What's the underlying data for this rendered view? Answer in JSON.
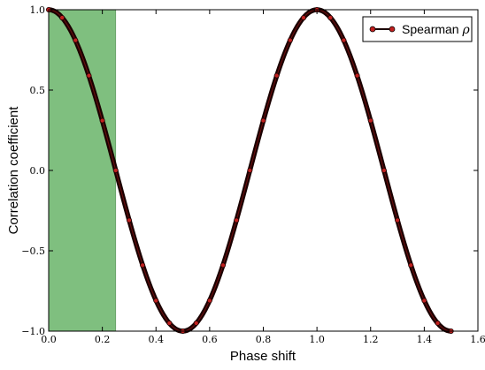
{
  "chart_data": {
    "type": "line",
    "xlabel": "Phase shift",
    "ylabel": "Correlation coefficient",
    "xlim": [
      0.0,
      1.6
    ],
    "ylim": [
      -1.0,
      1.0
    ],
    "xticks": [
      "0.0",
      "0.2",
      "0.4",
      "0.6",
      "0.8",
      "1.0",
      "1.2",
      "1.4",
      "1.6"
    ],
    "yticks": [
      "1.0",
      "0.5",
      "0.0",
      "−0.5",
      "−1.0"
    ],
    "shaded_region": {
      "x": [
        0.0,
        0.25
      ],
      "color": "#7fbf7f"
    },
    "series": [
      {
        "name_prefix": "Spearman ",
        "name_symbol": "ρ",
        "line_color": "#1a0000",
        "marker_color": "#c0201f",
        "x": [
          0.0,
          0.05,
          0.1,
          0.15,
          0.2,
          0.25,
          0.3,
          0.35,
          0.4,
          0.45,
          0.5,
          0.55,
          0.6,
          0.65,
          0.7,
          0.75,
          0.8,
          0.85,
          0.9,
          0.95,
          1.0,
          1.05,
          1.1,
          1.15,
          1.2,
          1.25,
          1.3,
          1.35,
          1.4,
          1.45,
          1.5
        ],
        "y": [
          1.0,
          0.95,
          0.81,
          0.59,
          0.31,
          0.0,
          -0.31,
          -0.59,
          -0.81,
          -0.95,
          -1.0,
          -0.95,
          -0.81,
          -0.59,
          -0.31,
          0.0,
          0.31,
          0.59,
          0.81,
          0.95,
          1.0,
          0.95,
          0.81,
          0.59,
          0.31,
          0.0,
          -0.31,
          -0.59,
          -0.81,
          -0.95,
          -1.0
        ]
      }
    ],
    "legend_position": "top-right",
    "grid": false
  }
}
